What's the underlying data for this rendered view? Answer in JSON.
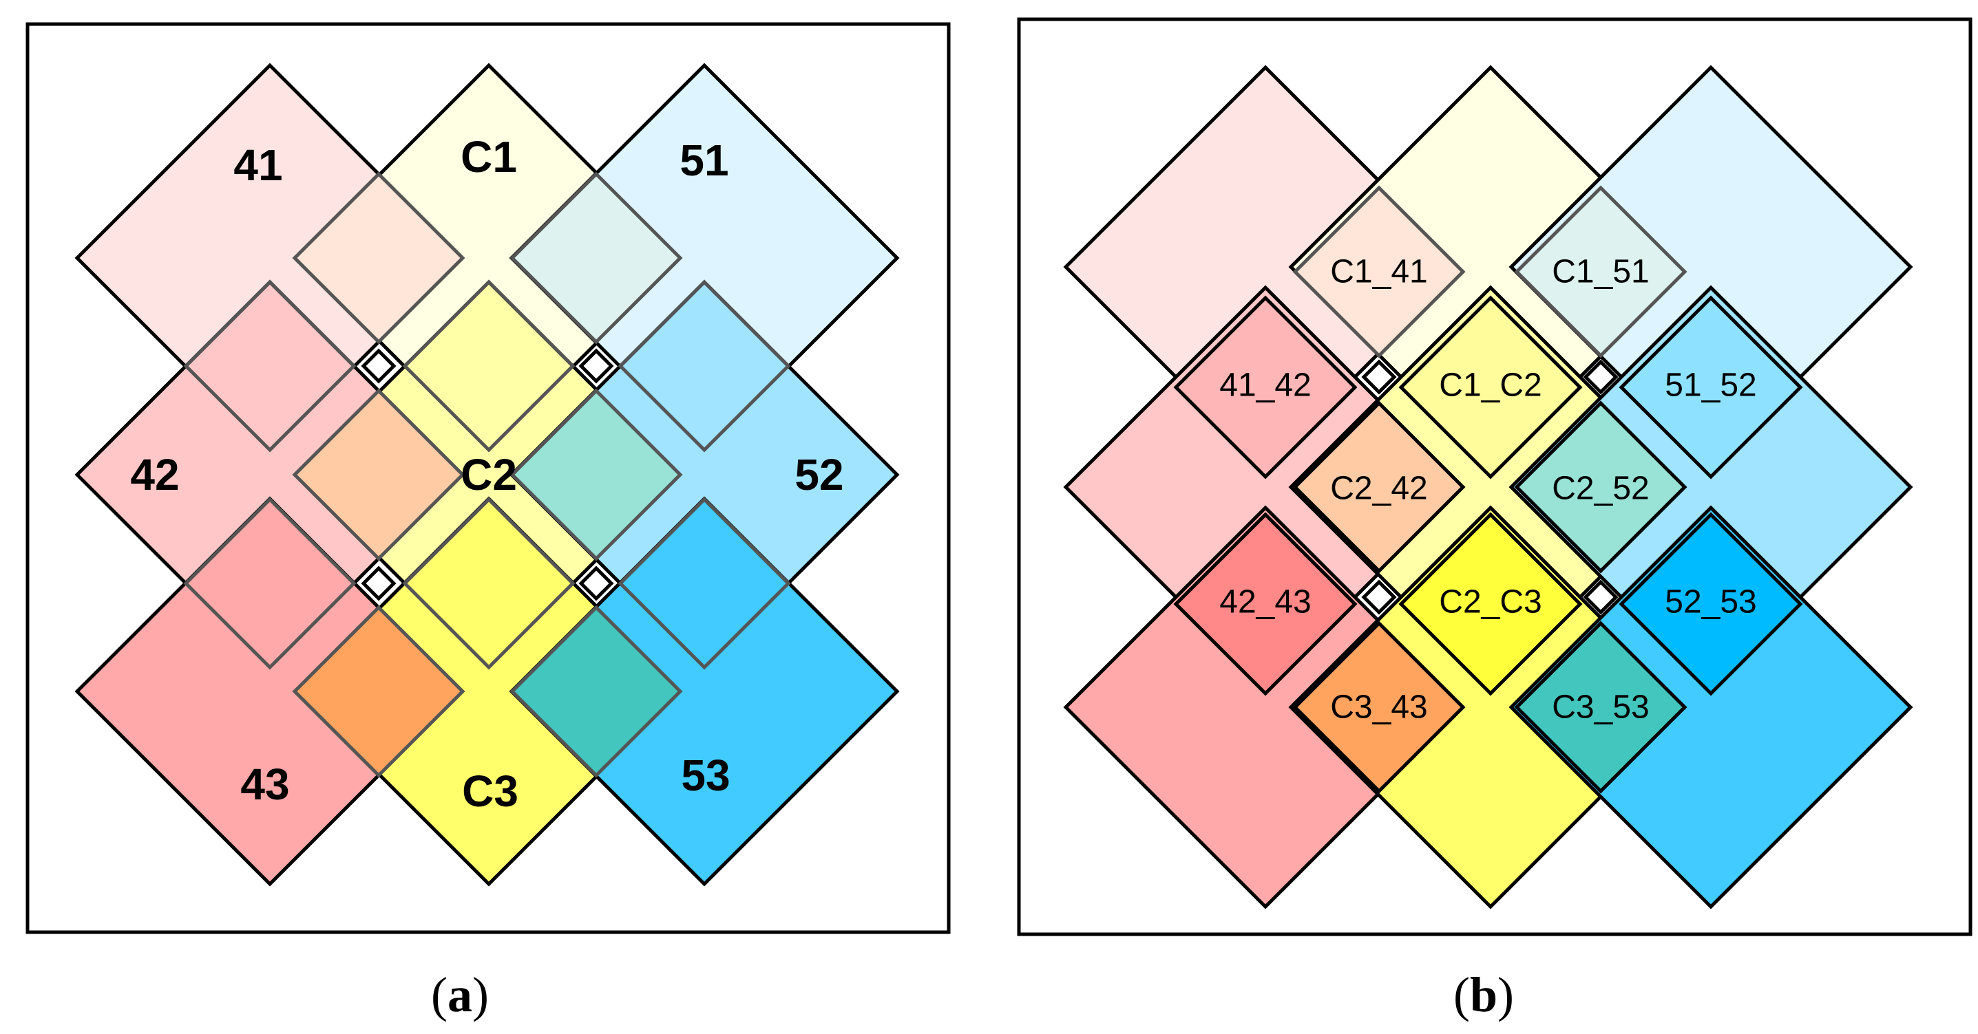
{
  "panel_a": {
    "caption_letter": "a",
    "labels": {
      "41": "41",
      "C1": "C1",
      "51": "51",
      "42": "42",
      "C2": "C2",
      "52": "52",
      "43": "43",
      "C3": "C3",
      "53": "53"
    }
  },
  "panel_b": {
    "caption_letter": "b",
    "labels": {
      "C1_41": "C1_41",
      "C1_51": "C1_51",
      "41_42": "41_42",
      "C1_C2": "C1_C2",
      "51_52": "51_52",
      "C2_42": "C2_42",
      "C2_52": "C2_52",
      "42_43": "42_43",
      "C2_C3": "C2_C3",
      "52_53": "52_53",
      "C3_43": "C3_43",
      "C3_53": "C3_53"
    }
  },
  "colors": {
    "41": "#ffe4e4",
    "C1": "#ffffe4",
    "51": "#def5ff",
    "42": "#ffc7c8",
    "C2": "#ffffa8",
    "52": "#a1e4ff",
    "43": "#ffa9aa",
    "C3": "#ffff6b",
    "53": "#41cbff",
    "overlap_top_left": "#ffe6d8",
    "overlap_top_right": "#def3f0",
    "overlap_mid_left": "#fecba5",
    "overlap_mid_right": "#98e3d6",
    "overlap_bottom_left": "#ffa45f",
    "overlap_bottom_right": "#42c6be",
    "mid_41_42": "#ffb6b7",
    "mid_C1_C2": "#fffc9b",
    "mid_51_52": "#8fe2ff",
    "mid_42_43": "#ff8888",
    "mid_C2_C3": "#ffff3c",
    "mid_52_53": "#00bbff",
    "stroke": "#000000",
    "overlap_stroke": "#555555"
  }
}
